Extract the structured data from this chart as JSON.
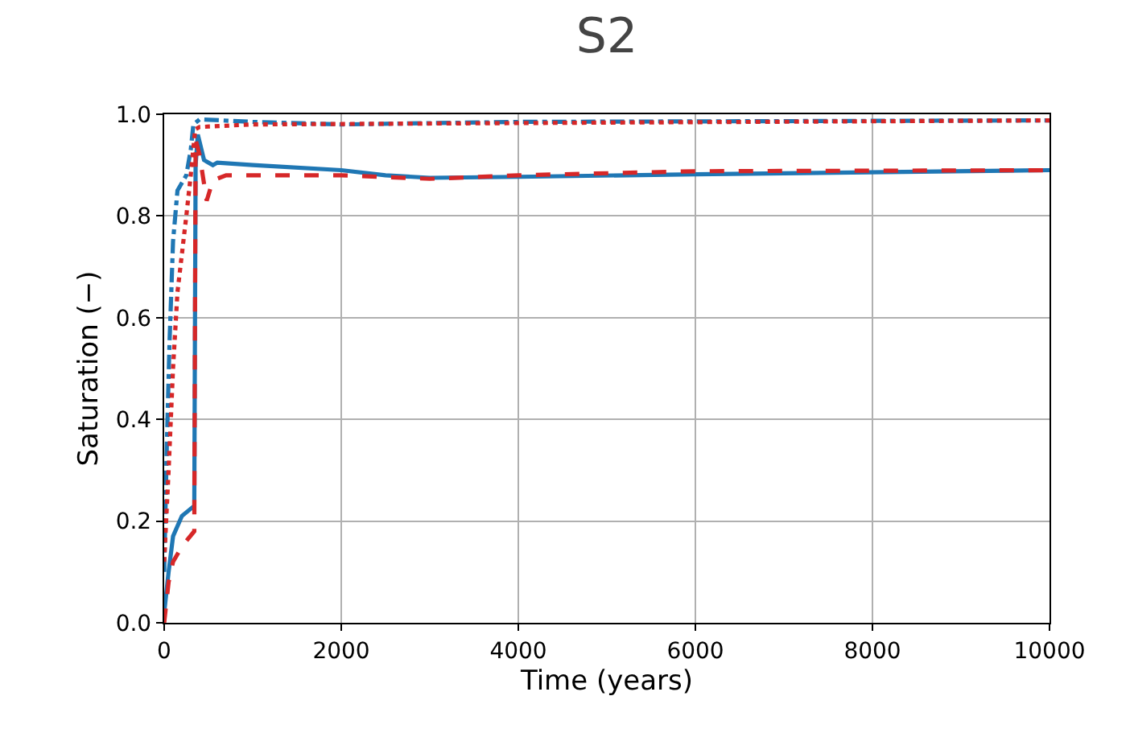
{
  "chart_data": {
    "type": "line",
    "title": "S2",
    "xlabel": "Time (years)",
    "ylabel": "Saturation (−)",
    "xlim": [
      0,
      10000
    ],
    "xticks": [
      0,
      2000,
      4000,
      6000,
      8000,
      10000
    ],
    "ylim": [
      0,
      1.0
    ],
    "yticks": [
      {
        "value": 0,
        "label": "0.0"
      },
      0.2,
      0.4,
      0.6,
      0.8,
      {
        "value": 1,
        "label": "1.0"
      }
    ],
    "grid": true,
    "marker": "none",
    "series": [
      {
        "color": "#1f77b4",
        "line_style": "solid",
        "x": [
          0,
          50,
          100,
          200,
          340,
          355,
          380,
          450,
          550,
          600,
          1000,
          2000,
          2500,
          3000,
          4000,
          6000,
          10000
        ],
        "values": [
          0.02,
          0.1,
          0.17,
          0.21,
          0.23,
          0.9,
          0.96,
          0.91,
          0.9,
          0.905,
          0.9,
          0.89,
          0.88,
          0.875,
          0.877,
          0.882,
          0.89
        ]
      },
      {
        "color": "#d62728",
        "line_style": "dashed",
        "x": [
          0,
          50,
          100,
          200,
          340,
          355,
          400,
          480,
          550,
          700,
          2000,
          3000,
          4000,
          6000,
          10000
        ],
        "values": [
          0,
          0.08,
          0.12,
          0.15,
          0.18,
          0.95,
          0.92,
          0.83,
          0.87,
          0.88,
          0.88,
          0.873,
          0.88,
          0.888,
          0.89
        ]
      },
      {
        "color": "#1f77b4",
        "line_style": "dashdot",
        "x": [
          0,
          30,
          60,
          100,
          150,
          250,
          300,
          330,
          400,
          1000,
          2000,
          4000,
          10000
        ],
        "values": [
          0.1,
          0.35,
          0.55,
          0.75,
          0.85,
          0.88,
          0.93,
          0.98,
          0.99,
          0.985,
          0.98,
          0.985,
          0.988
        ]
      },
      {
        "color": "#d62728",
        "line_style": "dotted",
        "x": [
          0,
          50,
          100,
          150,
          250,
          300,
          350,
          400,
          1000,
          10000
        ],
        "values": [
          0.12,
          0.3,
          0.5,
          0.65,
          0.8,
          0.88,
          0.97,
          0.975,
          0.98,
          0.988
        ]
      }
    ]
  }
}
